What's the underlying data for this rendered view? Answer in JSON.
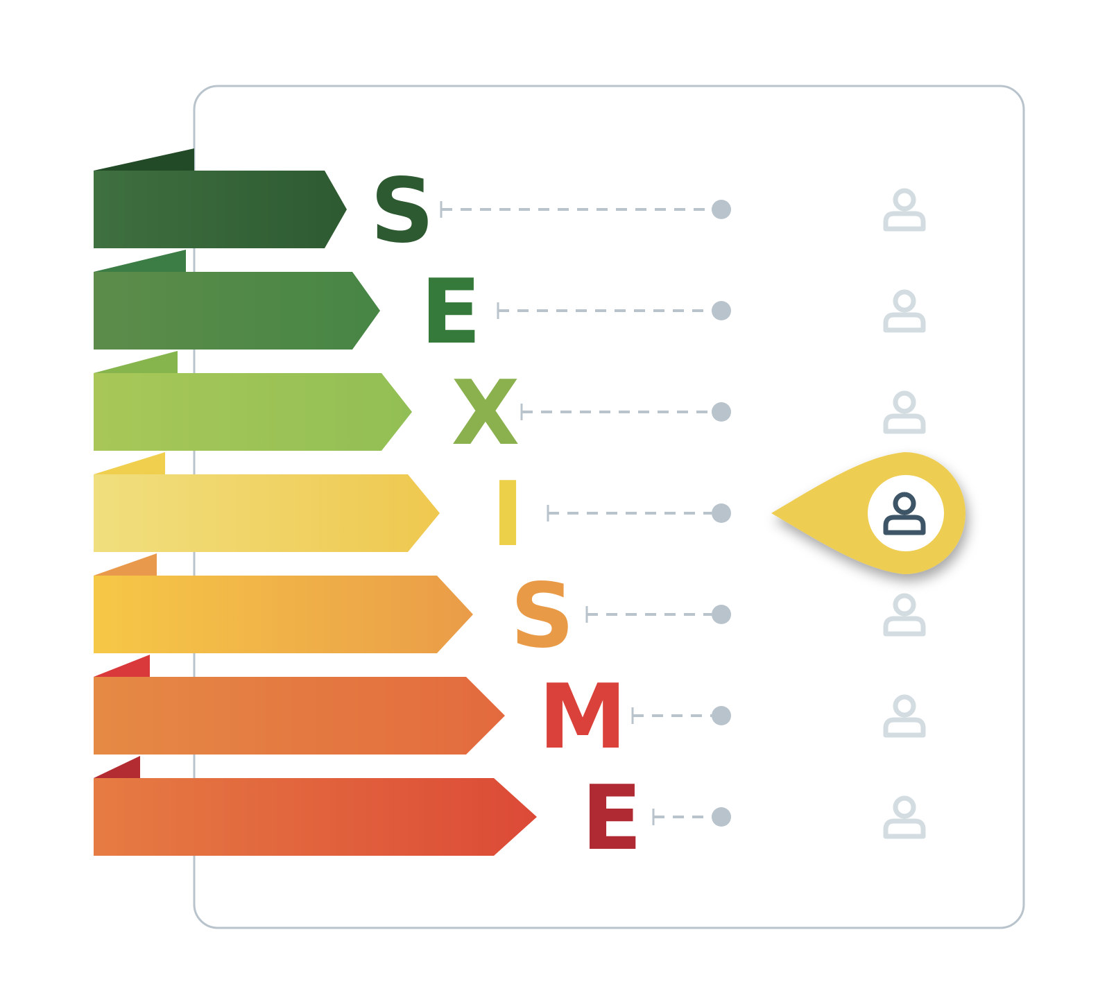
{
  "rows": [
    {
      "letter": "S",
      "letter_color": "#2d5a31",
      "bar_from": "#3f7040",
      "bar_to": "#2e5a32",
      "flap_color": "#224a27"
    },
    {
      "letter": "E",
      "letter_color": "#357a3a",
      "bar_from": "#5d8c4a",
      "bar_to": "#478645",
      "flap_color": "#3b7d45"
    },
    {
      "letter": "X",
      "letter_color": "#8ab14e",
      "bar_from": "#a8c758",
      "bar_to": "#92bf55",
      "flap_color": "#86b54e"
    },
    {
      "letter": "I",
      "letter_color": "#ecd04a",
      "bar_from": "#f0df7e",
      "bar_to": "#efc84f",
      "flap_color": "#f0ce4e"
    },
    {
      "letter": "S",
      "letter_color": "#e99a47",
      "bar_from": "#f6c847",
      "bar_to": "#ea9c48",
      "flap_color": "#e9994b"
    },
    {
      "letter": "M",
      "letter_color": "#d9413a",
      "bar_from": "#e58a45",
      "bar_to": "#e36a3e",
      "flap_color": "#d9393a"
    },
    {
      "letter": "E",
      "letter_color": "#b02a33",
      "bar_from": "#e67c43",
      "bar_to": "#dc4a37",
      "flap_color": "#b22c31"
    }
  ],
  "highlighted_row": 3,
  "colors": {
    "frame": "#b8c3cc",
    "connector": "#b8c3cc",
    "user_icon_inactive": "#d3dce1",
    "user_icon_active": "#3d5566",
    "marker": "#eecd52"
  },
  "icons": {
    "user": "user-icon",
    "marker": "map-pin-marker-icon"
  }
}
